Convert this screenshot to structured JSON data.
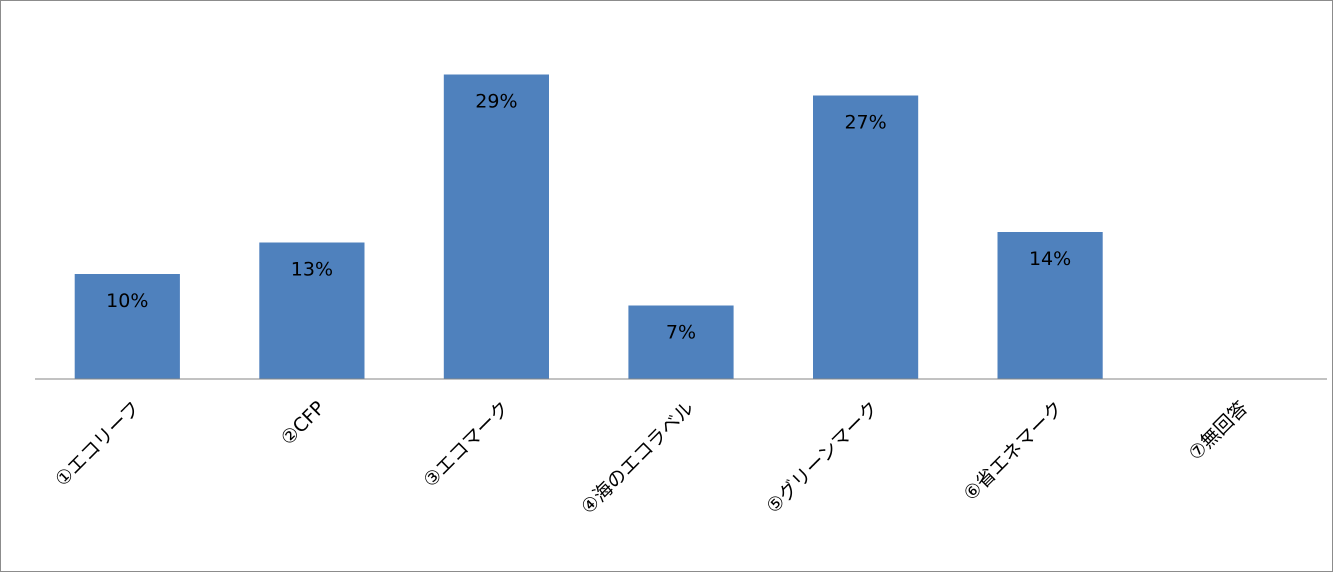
{
  "chart_data": {
    "type": "bar",
    "title": "",
    "xlabel": "",
    "ylabel": "",
    "categories": [
      "①エコリーフ",
      "②CFP",
      "③エコマーク",
      "④海のエコラベル",
      "⑤グリーンマーク",
      "⑥省エネマーク",
      "⑦無回答"
    ],
    "values": [
      10,
      13,
      29,
      7,
      27,
      14,
      0
    ],
    "value_labels": [
      "10%",
      "13%",
      "29%",
      "7%",
      "27%",
      "14%",
      ""
    ],
    "ylim": [
      0,
      32
    ],
    "grid": false,
    "legend": "none",
    "bar_color": "#4f81bd",
    "axis_color": "#868686",
    "label_color": "#000000"
  }
}
